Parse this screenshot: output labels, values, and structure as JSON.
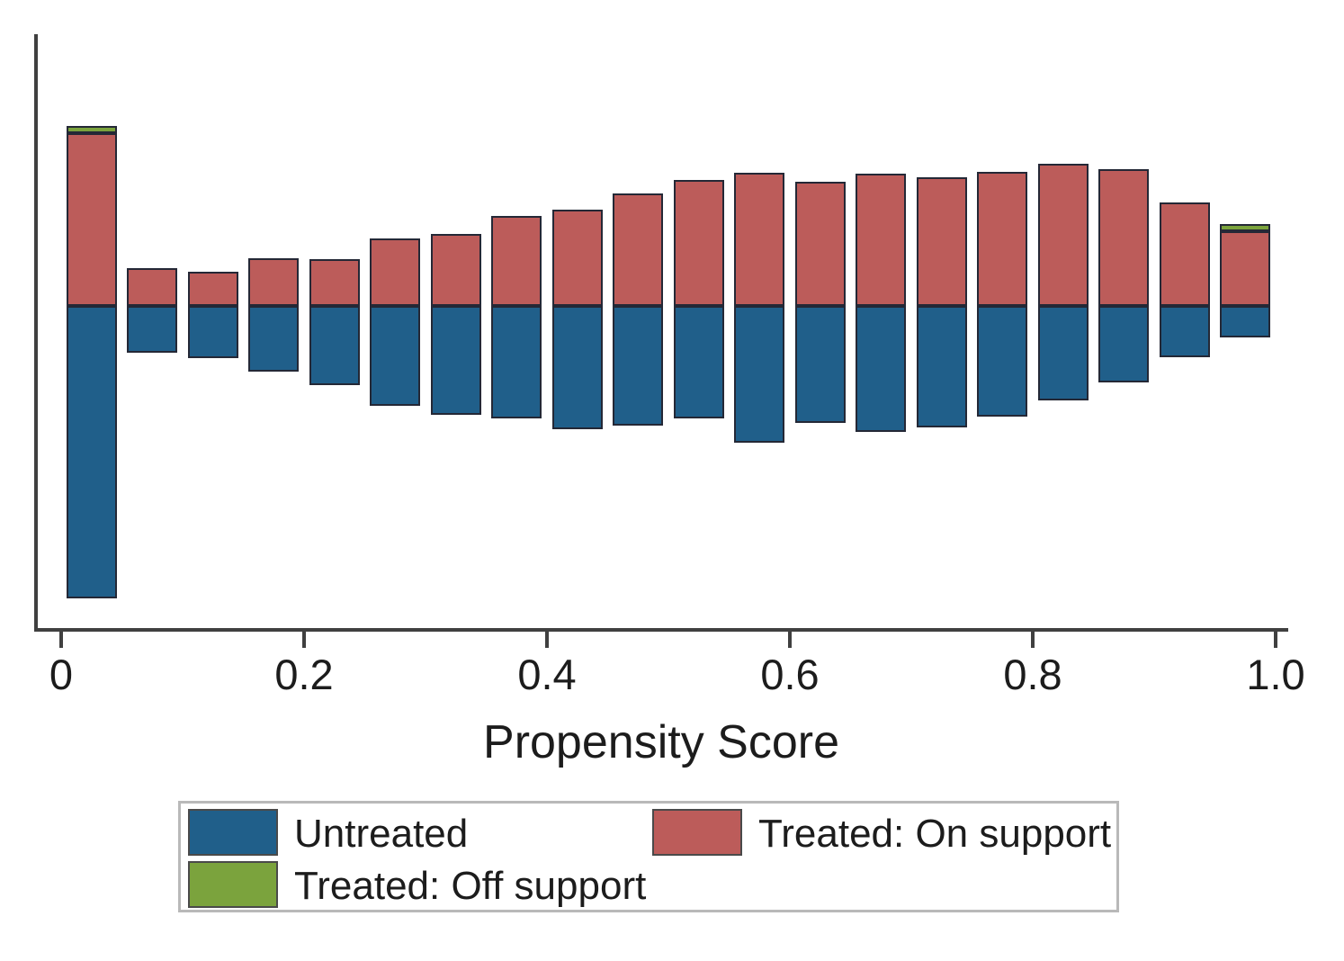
{
  "chart_data": {
    "type": "bar",
    "subtype": "diverging-stacked-histogram (propensity score overlap plot, treated bars up / untreated bars down from a common baseline)",
    "title": "",
    "xlabel": "Propensity Score",
    "ylabel": "",
    "xlim": [
      0,
      1
    ],
    "bin_width": 0.05,
    "grid": false,
    "legend_position": "below plot",
    "y_units": "relative bar height (no y-axis scale is shown in the chart)",
    "x_ticks": [
      {
        "label": "0",
        "value": 0.0
      },
      {
        "label": "0.2",
        "value": 0.2
      },
      {
        "label": "0.4",
        "value": 0.4
      },
      {
        "label": "0.6",
        "value": 0.6
      },
      {
        "label": "0.8",
        "value": 0.8
      },
      {
        "label": "1.0",
        "value": 1.0
      }
    ],
    "colors": {
      "untreated": "#205f8a",
      "treated_on": "#bc5c5a",
      "treated_off": "#7ba33d",
      "axis": "#404040",
      "bar_outline": "#242836"
    },
    "bins": [
      {
        "center": 0.025,
        "untreated": 325,
        "treated_on": 192,
        "treated_off": 8
      },
      {
        "center": 0.075,
        "untreated": 52,
        "treated_on": 42,
        "treated_off": 0
      },
      {
        "center": 0.125,
        "untreated": 58,
        "treated_on": 38,
        "treated_off": 0
      },
      {
        "center": 0.175,
        "untreated": 73,
        "treated_on": 53,
        "treated_off": 0
      },
      {
        "center": 0.225,
        "untreated": 88,
        "treated_on": 52,
        "treated_off": 0
      },
      {
        "center": 0.275,
        "untreated": 111,
        "treated_on": 75,
        "treated_off": 0
      },
      {
        "center": 0.325,
        "untreated": 121,
        "treated_on": 80,
        "treated_off": 0
      },
      {
        "center": 0.375,
        "untreated": 125,
        "treated_on": 100,
        "treated_off": 0
      },
      {
        "center": 0.425,
        "untreated": 137,
        "treated_on": 107,
        "treated_off": 0
      },
      {
        "center": 0.475,
        "untreated": 133,
        "treated_on": 125,
        "treated_off": 0
      },
      {
        "center": 0.525,
        "untreated": 125,
        "treated_on": 140,
        "treated_off": 0
      },
      {
        "center": 0.575,
        "untreated": 152,
        "treated_on": 148,
        "treated_off": 0
      },
      {
        "center": 0.625,
        "untreated": 130,
        "treated_on": 138,
        "treated_off": 0
      },
      {
        "center": 0.675,
        "untreated": 140,
        "treated_on": 147,
        "treated_off": 0
      },
      {
        "center": 0.725,
        "untreated": 135,
        "treated_on": 143,
        "treated_off": 0
      },
      {
        "center": 0.775,
        "untreated": 123,
        "treated_on": 149,
        "treated_off": 0
      },
      {
        "center": 0.825,
        "untreated": 105,
        "treated_on": 158,
        "treated_off": 0
      },
      {
        "center": 0.875,
        "untreated": 85,
        "treated_on": 152,
        "treated_off": 0
      },
      {
        "center": 0.925,
        "untreated": 57,
        "treated_on": 115,
        "treated_off": 0
      },
      {
        "center": 0.975,
        "untreated": 35,
        "treated_on": 83,
        "treated_off": 8
      }
    ]
  },
  "legend": {
    "items": [
      {
        "label": "Untreated"
      },
      {
        "label": "Treated: On support"
      },
      {
        "label": "Treated: Off support"
      }
    ]
  }
}
